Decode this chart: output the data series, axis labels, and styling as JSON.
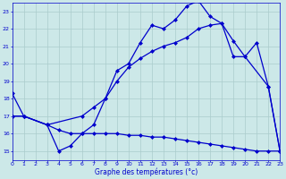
{
  "line1_x": [
    0,
    1,
    3,
    4,
    5,
    6,
    7,
    8,
    9,
    10,
    11,
    12,
    13,
    14,
    15,
    16,
    17,
    18,
    19,
    20,
    21,
    22,
    23
  ],
  "line1_y": [
    18.3,
    17.0,
    16.5,
    15.0,
    15.3,
    16.0,
    16.5,
    18.0,
    19.6,
    20.0,
    21.2,
    22.2,
    22.0,
    22.5,
    23.3,
    23.6,
    22.7,
    22.3,
    21.3,
    20.4,
    21.2,
    18.7,
    15.0
  ],
  "line2_x": [
    0,
    1,
    3,
    4,
    5,
    6,
    7,
    8,
    9,
    10,
    11,
    12,
    13,
    14,
    15,
    16,
    17,
    18,
    19,
    20,
    21,
    22,
    23
  ],
  "line2_y": [
    17.0,
    17.0,
    16.5,
    16.2,
    16.0,
    16.0,
    16.0,
    16.0,
    16.0,
    15.9,
    15.9,
    15.8,
    15.8,
    15.7,
    15.6,
    15.5,
    15.4,
    15.3,
    15.2,
    15.1,
    15.0,
    15.0,
    15.0
  ],
  "line3_x": [
    0,
    1,
    3,
    6,
    7,
    8,
    9,
    10,
    11,
    12,
    13,
    14,
    15,
    16,
    17,
    18,
    19,
    20,
    22,
    23
  ],
  "line3_y": [
    17.0,
    17.0,
    16.5,
    17.0,
    17.5,
    18.0,
    19.0,
    19.8,
    20.3,
    20.7,
    21.0,
    21.2,
    21.5,
    22.0,
    22.2,
    22.3,
    20.4,
    20.4,
    18.7,
    15.0
  ],
  "xlabel": "Graphe des températures (°c)",
  "xlim": [
    0,
    23
  ],
  "ylim": [
    14.5,
    23.5
  ],
  "yticks": [
    15,
    16,
    17,
    18,
    19,
    20,
    21,
    22,
    23
  ],
  "xticks": [
    0,
    1,
    2,
    3,
    4,
    5,
    6,
    7,
    8,
    9,
    10,
    11,
    12,
    13,
    14,
    15,
    16,
    17,
    18,
    19,
    20,
    21,
    22,
    23
  ],
  "line_color": "#0000cc",
  "bg_color": "#cce8e8",
  "grid_color": "#aacccc"
}
